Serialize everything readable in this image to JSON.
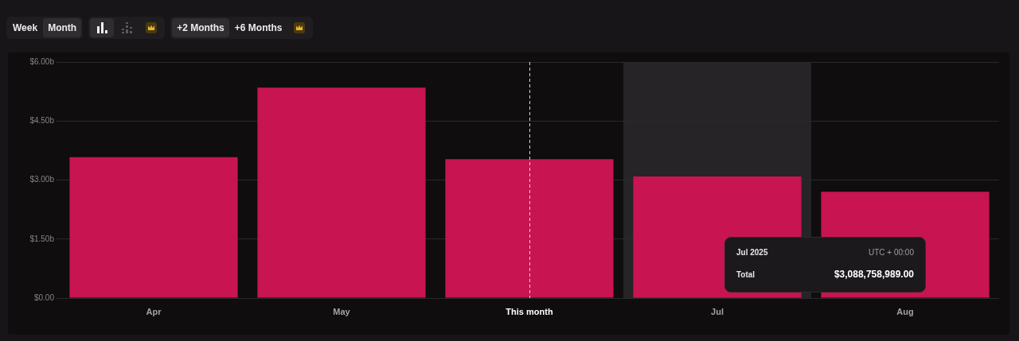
{
  "chart_data": {
    "type": "bar",
    "categories": [
      "Apr",
      "May",
      "This month",
      "Jul",
      "Aug"
    ],
    "values": [
      3.58,
      5.35,
      3.53,
      3.09,
      2.7
    ],
    "color": "#c81450",
    "ylim": [
      0,
      6
    ],
    "yticks": [
      {
        "value": 0,
        "label": "$0.00"
      },
      {
        "value": 1.5,
        "label": "$1.50b"
      },
      {
        "value": 3,
        "label": "$3.00b"
      },
      {
        "value": 4.5,
        "label": "$4.50b"
      },
      {
        "value": 6,
        "label": "$6.00b"
      }
    ],
    "grid": "y",
    "ref_lines": [
      {
        "axis": "x",
        "value": "This month",
        "color": "#d9d9d9",
        "line_style": "dashed"
      }
    ],
    "bands": [
      {
        "axis": "x",
        "from": "Jul",
        "to": "Jul",
        "color": "#262426"
      }
    ],
    "annotations": [
      "Week",
      "Month",
      "+2 Months",
      "+6 Months",
      "Jul 2025",
      "UTC + 00:00",
      "Total",
      "$3,088,758,989.00"
    ]
  }
}
